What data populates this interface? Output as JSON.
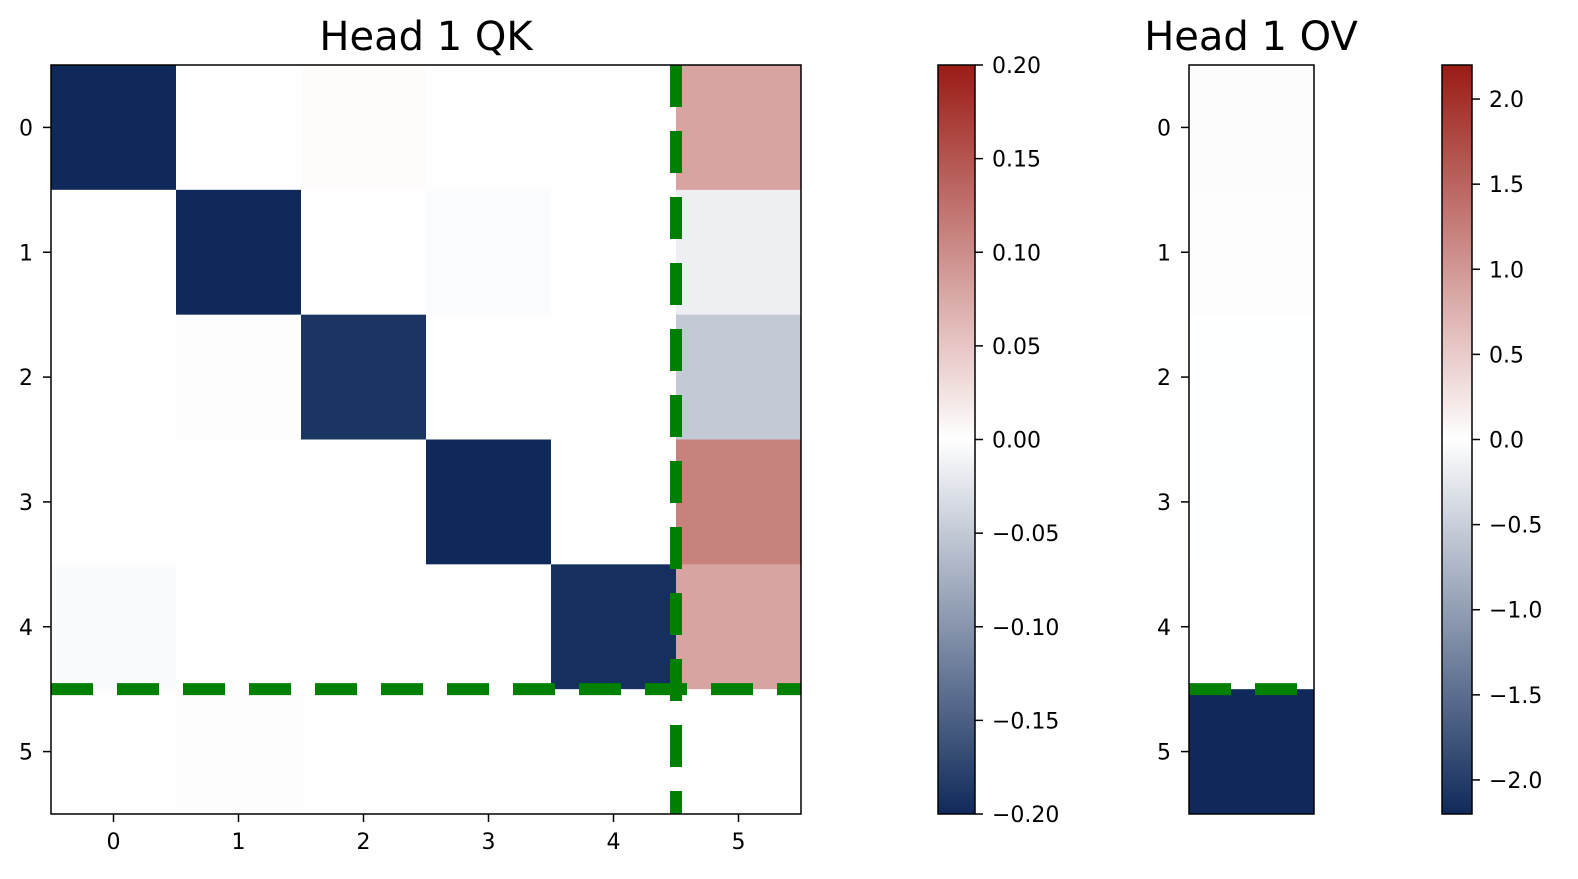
{
  "chart_data": [
    {
      "type": "heatmap",
      "title": "Head 1 QK",
      "x_categories": [
        "0",
        "1",
        "2",
        "3",
        "4",
        "5"
      ],
      "y_categories": [
        "0",
        "1",
        "2",
        "3",
        "4",
        "5"
      ],
      "values": [
        [
          -0.2,
          0.0,
          0.003,
          0.001,
          0.001,
          0.08
        ],
        [
          -0.001,
          -0.2,
          -0.001,
          -0.003,
          0.0,
          -0.015
        ],
        [
          -0.001,
          -0.002,
          -0.19,
          -0.001,
          -0.001,
          -0.05
        ],
        [
          -0.001,
          -0.001,
          0.0,
          -0.2,
          -0.001,
          0.11
        ],
        [
          -0.004,
          -0.001,
          -0.001,
          -0.001,
          -0.195,
          0.08
        ],
        [
          -0.001,
          -0.002,
          -0.001,
          -0.001,
          -0.001,
          -0.001
        ]
      ],
      "vmin": -0.2,
      "vmax": 0.2,
      "divider_x": 4.5,
      "divider_y": 4.5,
      "divider_color": "#008000",
      "colorbar": {
        "ticks": [
          0.2,
          0.15,
          0.1,
          0.05,
          0.0,
          -0.05,
          -0.1,
          -0.15,
          -0.2
        ],
        "tick_labels": [
          "0.20",
          "0.15",
          "0.10",
          "0.05",
          "0.00",
          "−0.05",
          "−0.10",
          "−0.15",
          "−0.20"
        ]
      }
    },
    {
      "type": "heatmap",
      "title": "Head 1 OV",
      "y_categories": [
        "0",
        "1",
        "2",
        "3",
        "4",
        "5"
      ],
      "values": [
        [
          -0.03
        ],
        [
          -0.02
        ],
        [
          -0.005
        ],
        [
          -0.005
        ],
        [
          -0.01
        ],
        [
          -2.2
        ]
      ],
      "vmin": -2.2,
      "vmax": 2.2,
      "divider_y": 4.5,
      "divider_color": "#008000",
      "colorbar": {
        "ticks": [
          2.0,
          1.5,
          1.0,
          0.5,
          0.0,
          -0.5,
          -1.0,
          -1.5,
          -2.0
        ],
        "tick_labels": [
          "2.0",
          "1.5",
          "1.0",
          "0.5",
          "0.0",
          "−0.5",
          "−1.0",
          "−1.5",
          "−2.0"
        ]
      }
    }
  ],
  "colors": {
    "low": "#0f2a5a",
    "mid": "#ffffff",
    "high": "#9b1b15",
    "divider": "#008000"
  }
}
